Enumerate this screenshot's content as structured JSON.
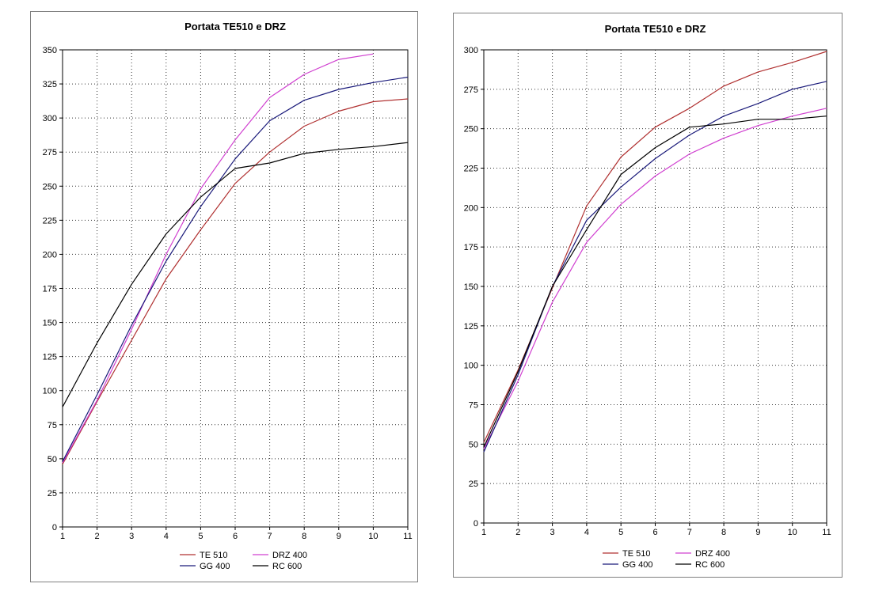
{
  "charts": [
    {
      "chart_data": {
        "type": "line",
        "title": "Portata TE510 e DRZ",
        "xlabel": "",
        "ylabel": "",
        "x": [
          1,
          2,
          3,
          4,
          5,
          6,
          7,
          8,
          9,
          10,
          11
        ],
        "xlim": [
          1,
          11
        ],
        "ylim": [
          0,
          350
        ],
        "ytick_step": 25,
        "grid": true,
        "legend_position": "bottom",
        "series": [
          {
            "name": "TE 510",
            "color": "#b03030",
            "values": [
              46,
              92,
              137,
              182,
              218,
              252,
              275,
              294,
              305,
              312,
              314
            ]
          },
          {
            "name": "DRZ 400",
            "color": "#d040d0",
            "values": [
              47,
              93,
              145,
              200,
              248,
              284,
              315,
              332,
              343,
              347,
              null
            ]
          },
          {
            "name": "GG 400",
            "color": "#1a1a7a",
            "values": [
              48,
              97,
              148,
              195,
              235,
              270,
              298,
              313,
              321,
              326,
              330
            ]
          },
          {
            "name": "RC 600",
            "color": "#000000",
            "values": [
              88,
              135,
              178,
              215,
              242,
              263,
              267,
              274,
              277,
              279,
              282
            ]
          }
        ]
      }
    },
    {
      "chart_data": {
        "type": "line",
        "title": "Portata TE510 e DRZ",
        "xlabel": "",
        "ylabel": "",
        "x": [
          1,
          2,
          3,
          4,
          5,
          6,
          7,
          8,
          9,
          10,
          11
        ],
        "xlim": [
          1,
          11
        ],
        "ylim": [
          0,
          300
        ],
        "ytick_step": 25,
        "grid": true,
        "legend_position": "bottom",
        "series": [
          {
            "name": "TE 510",
            "color": "#b03030",
            "values": [
              51,
              97,
              149,
              201,
              232,
              251,
              263,
              277,
              286,
              292,
              299
            ]
          },
          {
            "name": "DRZ 400",
            "color": "#d040d0",
            "values": [
              47,
              90,
              140,
              178,
              202,
              220,
              234,
              244,
              252,
              258,
              263
            ]
          },
          {
            "name": "GG 400",
            "color": "#1a1a7a",
            "values": [
              45,
              94,
              150,
              192,
              213,
              231,
              246,
              258,
              266,
              275,
              280
            ]
          },
          {
            "name": "RC 600",
            "color": "#000000",
            "values": [
              48,
              96,
              150,
              186,
              221,
              238,
              251,
              253,
              256,
              256,
              258
            ]
          }
        ]
      }
    }
  ]
}
